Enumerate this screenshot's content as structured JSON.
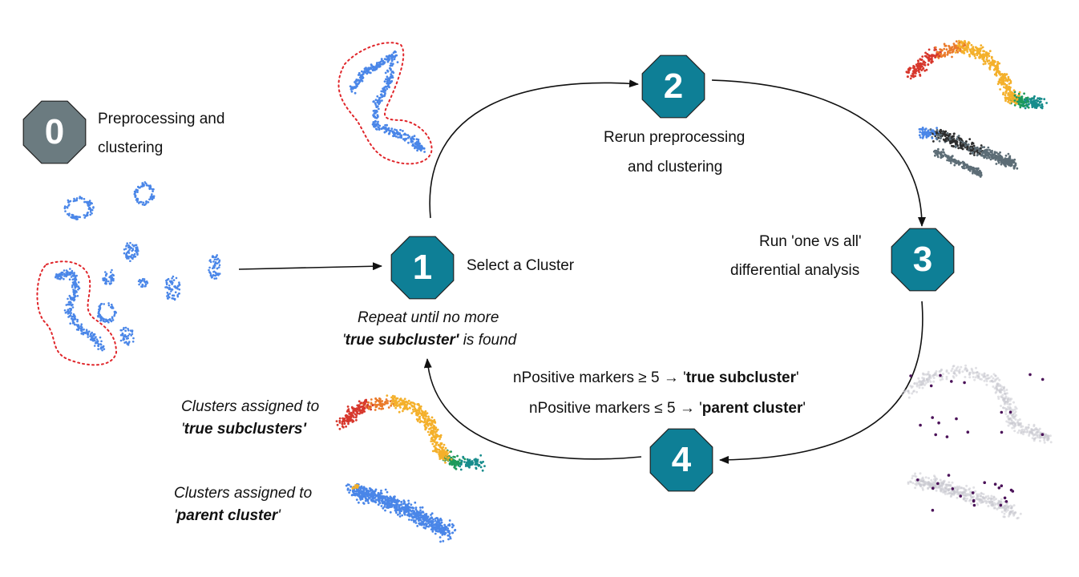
{
  "steps": [
    {
      "number": "0",
      "label_lines": [
        "Preprocessing and",
        "clustering"
      ]
    },
    {
      "number": "1",
      "label_lines": [
        "Select a Cluster"
      ]
    },
    {
      "number": "2",
      "label_lines": [
        "Rerun preprocessing",
        "and clustering"
      ]
    },
    {
      "number": "3",
      "label_lines": [
        "Run 'one vs all'",
        "differential analysis"
      ]
    },
    {
      "number": "4",
      "label_lines": []
    }
  ],
  "repeat": {
    "line1": "Repeat until no more",
    "q_open": "'",
    "bold": "true subcluster'",
    "rest": " is found"
  },
  "rule1": {
    "prefix": "nPositive markers ≥ 5 → '",
    "bold": "true subcluster",
    "suffix": "'"
  },
  "rule2": {
    "prefix": "nPositive markers ≤ 5 → '",
    "bold": "parent cluster",
    "suffix": "'"
  },
  "assigned_true": {
    "line1": "Clusters assigned to",
    "q_open": "'",
    "bold": "true subclusters'",
    "q_close": ""
  },
  "assigned_parent": {
    "line1": "Clusters assigned to",
    "q_open": "'",
    "bold": "parent cluster",
    "q_close": "'"
  },
  "colors": {
    "octagon_teal": "#0e7f96",
    "octagon_gray": "#6b7b80",
    "cell_blue": "#4a86e8",
    "highlight_red": "#e0262b",
    "cluster_palette": [
      "#d7372c",
      "#ea7a2a",
      "#f4b02b",
      "#1d9a5b",
      "#178c8c",
      "#2d2d2d",
      "#4a86e8",
      "#5d6d76",
      "#7e57c2"
    ],
    "marker_purple": "#4b1259"
  }
}
